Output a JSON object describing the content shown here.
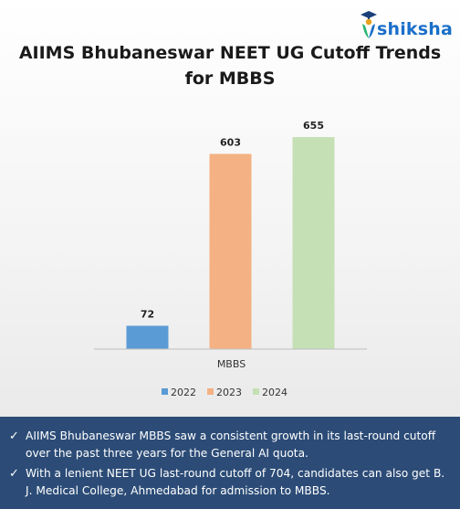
{
  "brand": {
    "name": "shiksha",
    "color": "#1a6fc9"
  },
  "title": "AIIMS Bhubaneswar NEET UG Cutoff Trends for MBBS",
  "chart_data": {
    "type": "bar",
    "categories": [
      "MBBS"
    ],
    "series": [
      {
        "name": "2022",
        "values": [
          72
        ],
        "color": "#5b9bd5"
      },
      {
        "name": "2023",
        "values": [
          603
        ],
        "color": "#f4b183"
      },
      {
        "name": "2024",
        "values": [
          655
        ],
        "color": "#c5e0b4"
      }
    ],
    "ylim": [
      0,
      720
    ],
    "grid": false,
    "legend": "bottom"
  },
  "notes": [
    "AIIMS Bhubaneswar MBBS saw a consistent growth in its last-round cutoff over the past three years for the General AI quota.",
    "With a lenient NEET UG last-round cutoff of 704, candidates can also get B. J. Medical College, Ahmedabad for admission to MBBS."
  ],
  "notes_bg": "#2c4c77",
  "check_glyph": "✓"
}
